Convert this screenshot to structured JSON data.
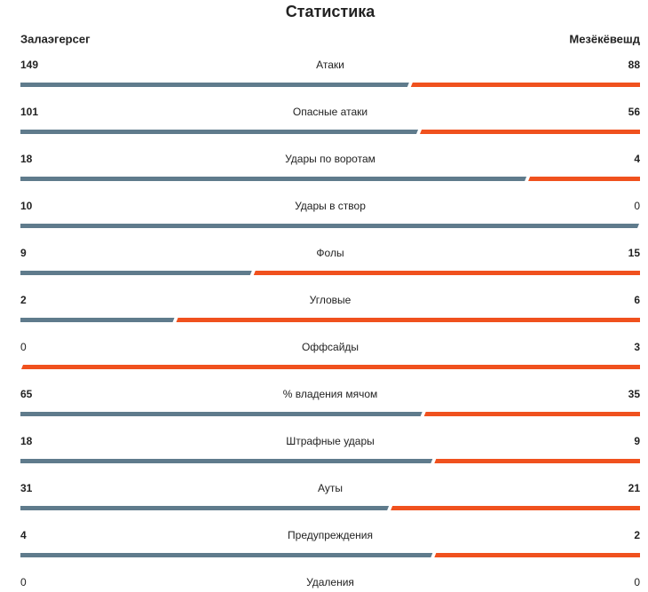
{
  "title": "Статистика",
  "teams": {
    "home": "Залаэгерсег",
    "away": "Мезёкёвешд"
  },
  "colors": {
    "home": "#5f7b8c",
    "away": "#f0511e"
  },
  "rows": [
    {
      "label": "Атаки",
      "home": 149,
      "away": 88
    },
    {
      "label": "Опасные атаки",
      "home": 101,
      "away": 56
    },
    {
      "label": "Удары по воротам",
      "home": 18,
      "away": 4
    },
    {
      "label": "Удары в створ",
      "home": 10,
      "away": 0
    },
    {
      "label": "Фолы",
      "home": 9,
      "away": 15
    },
    {
      "label": "Угловые",
      "home": 2,
      "away": 6
    },
    {
      "label": "Оффсайды",
      "home": 0,
      "away": 3
    },
    {
      "label": "% владения мячом",
      "home": 65,
      "away": 35
    },
    {
      "label": "Штрафные удары",
      "home": 18,
      "away": 9
    },
    {
      "label": "Ауты",
      "home": 31,
      "away": 21
    },
    {
      "label": "Предупреждения",
      "home": 4,
      "away": 2
    },
    {
      "label": "Удаления",
      "home": 0,
      "away": 0
    }
  ]
}
